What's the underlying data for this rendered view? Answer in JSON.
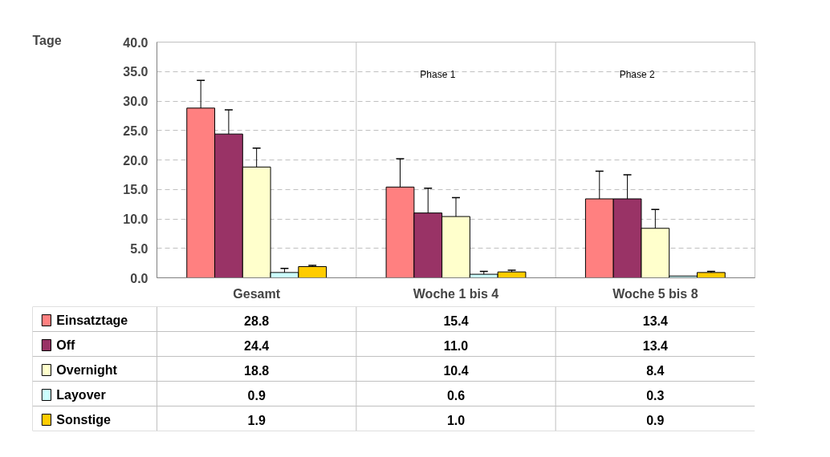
{
  "chart_data": {
    "type": "bar",
    "ylabel": "Tage",
    "categories": [
      "Gesamt",
      "Woche 1 bis 4",
      "Woche 5 bis 8"
    ],
    "series": [
      {
        "name": "Einsatztage",
        "color": "#ff8080",
        "values": [
          28.8,
          15.4,
          13.4
        ],
        "value_labels": [
          "28.8",
          "15.4",
          "13.4"
        ],
        "errors": [
          [
            28.8,
            33.5
          ],
          [
            15.4,
            20.2
          ],
          [
            13.4,
            18.1
          ]
        ]
      },
      {
        "name": "Off",
        "color": "#993366",
        "values": [
          24.4,
          11.0,
          13.4
        ],
        "value_labels": [
          "24.4",
          "11.0",
          "13.4"
        ],
        "errors": [
          [
            24.4,
            28.5
          ],
          [
            11.0,
            15.2
          ],
          [
            13.4,
            17.5
          ]
        ]
      },
      {
        "name": "Overnight",
        "color": "#ffffcc",
        "values": [
          18.8,
          10.4,
          8.4
        ],
        "value_labels": [
          "18.8",
          "10.4",
          "8.4"
        ],
        "errors": [
          [
            18.8,
            22.0
          ],
          [
            10.4,
            13.6
          ],
          [
            8.4,
            11.6
          ]
        ]
      },
      {
        "name": "Layover",
        "color": "#ccffff",
        "values": [
          0.9,
          0.6,
          0.3
        ],
        "value_labels": [
          "0.9",
          "0.6",
          "0.3"
        ],
        "errors": [
          [
            0.9,
            1.6
          ],
          [
            0.6,
            1.1
          ],
          null
        ]
      },
      {
        "name": "Sonstige",
        "color": "#ffcc00",
        "values": [
          1.9,
          1.0,
          0.9
        ],
        "value_labels": [
          "1.9",
          "1.0",
          "0.9"
        ],
        "errors": [
          [
            1.9,
            2.1
          ],
          [
            1.0,
            1.3
          ],
          [
            0.9,
            1.1
          ]
        ]
      }
    ],
    "annotations": [
      "Phase 1",
      "Phase 2"
    ],
    "ylim": [
      0,
      40
    ],
    "yticks": [
      {
        "value": 0,
        "label": "0.0"
      },
      {
        "value": 5,
        "label": "5.0"
      },
      {
        "value": 10,
        "label": "10.0"
      },
      {
        "value": 15,
        "label": "15.0"
      },
      {
        "value": 20,
        "label": "20.0"
      },
      {
        "value": 25,
        "label": "25.0"
      },
      {
        "value": 30,
        "label": "30.0"
      },
      {
        "value": 35,
        "label": "35.0"
      },
      {
        "value": 40,
        "label": "40.0"
      }
    ],
    "grid": "y",
    "legend": "bottom left"
  }
}
